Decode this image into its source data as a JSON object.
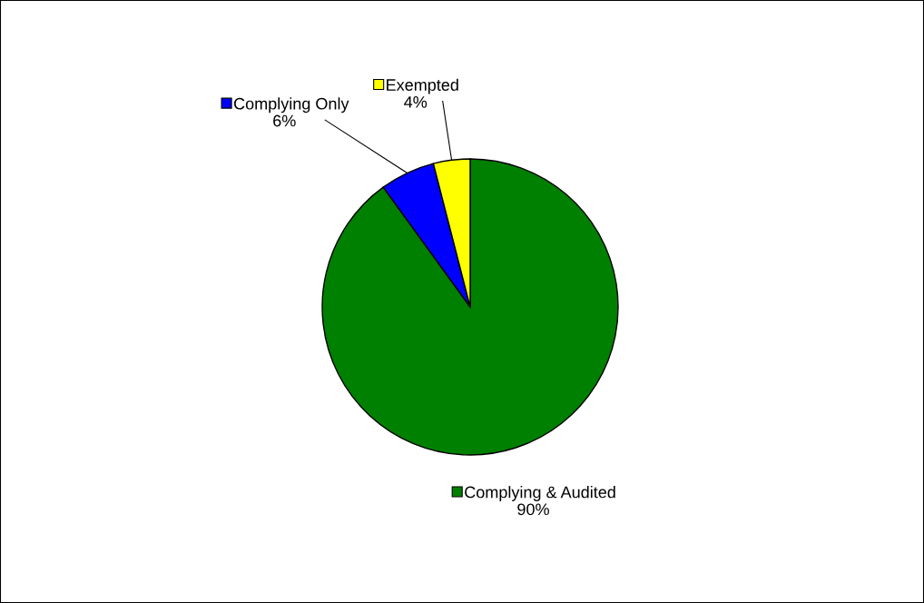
{
  "chart_data": {
    "type": "pie",
    "categories": [
      "Complying & Audited",
      "Complying Only",
      "Exempted"
    ],
    "values": [
      90,
      6,
      4
    ],
    "value_labels": [
      "90%",
      "6%",
      "4%"
    ],
    "colors": [
      "#008000",
      "#0000ff",
      "#ffff00"
    ],
    "legend": "top"
  }
}
